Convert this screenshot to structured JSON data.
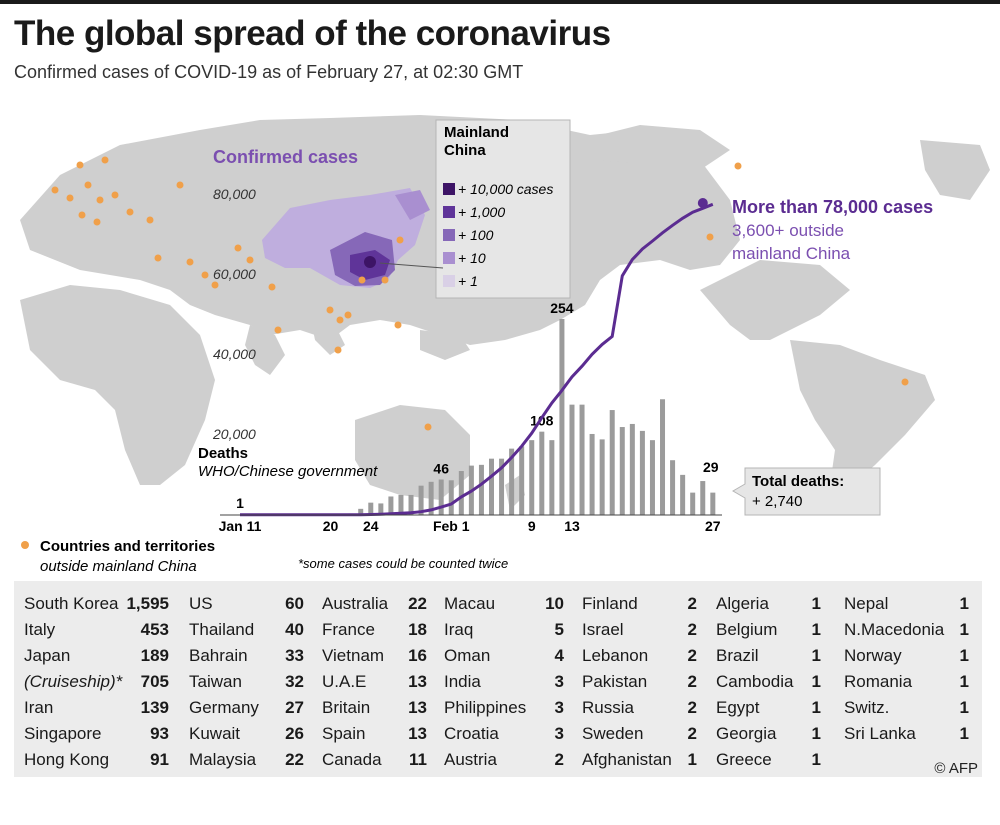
{
  "title": "The global spread of the coronavirus",
  "subtitle": "Confirmed cases of COVID-19 as of February 27, at 02:30 GMT",
  "colors": {
    "map": "#cfcfcf",
    "line": "#5b2c91",
    "bars": "#9b9b9b",
    "dots": "#f0a04a",
    "purple_text": "#7b4fb0",
    "legend_shades": [
      "#3d1466",
      "#5f3499",
      "#8668b8",
      "#a98fd0",
      "#d9d0e6"
    ]
  },
  "confirmed_label": "Confirmed cases",
  "china_legend": {
    "title_line1": "Mainland",
    "title_line2": "China",
    "items": [
      "+ 10,000 cases",
      "+ 1,000",
      "+ 100",
      "+ 10",
      "+ 1"
    ]
  },
  "cases_annotation": {
    "main": "More than 78,000 cases",
    "line2": "3,600+ outside",
    "line3": "mainland China"
  },
  "deaths_label": "Deaths",
  "deaths_source": "WHO/Chinese government",
  "total_deaths_label": "Total deaths:",
  "total_deaths_value": "+ 2,740",
  "dots_legend_line1": "Countries and territories",
  "dots_legend_line2": "outside mainland China",
  "footnote": "*some cases could be counted twice",
  "credit": "© AFP",
  "chart_data": {
    "type": "line",
    "description_x": "date",
    "y_ticks": [
      "80,000",
      "60,000",
      "40,000",
      "20,000"
    ],
    "x_ticks": [
      "Jan 11",
      "20",
      "24",
      "Feb 1",
      "9",
      "13",
      "27"
    ],
    "ylim": [
      0,
      90000
    ],
    "cases_series": {
      "name": "Confirmed cases",
      "x_day": [
        0,
        10,
        11,
        12,
        13,
        14,
        15,
        16,
        17,
        18,
        19,
        20,
        21,
        22,
        23,
        24,
        25,
        26,
        27,
        28,
        29,
        30,
        31,
        32,
        33,
        34,
        35,
        36,
        37,
        38,
        39,
        40,
        41,
        42,
        43,
        44,
        45,
        46,
        47
      ],
      "y": [
        41,
        41,
        45,
        62,
        121,
        198,
        291,
        440,
        571,
        830,
        1287,
        1975,
        2744,
        4515,
        5974,
        7711,
        9692,
        11791,
        14380,
        17205,
        20438,
        24324,
        28018,
        31161,
        34546,
        37198,
        40171,
        42638,
        44653,
        59804,
        63851,
        66492,
        68500,
        70548,
        72436,
        74185,
        75700,
        76677,
        77673
      ]
    },
    "final_cases_point": {
      "x_day": 47,
      "y": 78000
    },
    "deaths_bars": {
      "name": "Deaths",
      "x_day": [
        10,
        11,
        12,
        13,
        14,
        15,
        16,
        17,
        18,
        19,
        20,
        21,
        22,
        23,
        24,
        25,
        26,
        27,
        28,
        29,
        30,
        31,
        32,
        33,
        34,
        35,
        36,
        37,
        38,
        39,
        40,
        41,
        42,
        43,
        44,
        45,
        46,
        47
      ],
      "values": [
        1,
        2,
        8,
        16,
        15,
        24,
        26,
        26,
        38,
        43,
        46,
        45,
        57,
        64,
        65,
        73,
        73,
        86,
        89,
        97,
        108,
        97,
        254,
        143,
        143,
        105,
        98,
        136,
        114,
        118,
        109,
        97,
        150,
        71,
        52,
        29,
        44,
        29
      ],
      "labels": {
        "1": "1",
        "46": "46",
        "108": "108",
        "254": "254",
        "29": "29"
      }
    },
    "annotations": [
      "1",
      "46",
      "108",
      "254",
      "29"
    ]
  },
  "table": [
    [
      [
        "South Korea",
        "1,595"
      ],
      [
        "Italy",
        "453"
      ],
      [
        "Japan",
        "189"
      ],
      [
        "(Cruiseship)*",
        "705"
      ],
      [
        "Iran",
        "139"
      ],
      [
        "Singapore",
        "93"
      ],
      [
        "Hong Kong",
        "91"
      ]
    ],
    [
      [
        "US",
        "60"
      ],
      [
        "Thailand",
        "40"
      ],
      [
        "Bahrain",
        "33"
      ],
      [
        "Taiwan",
        "32"
      ],
      [
        "Germany",
        "27"
      ],
      [
        "Kuwait",
        "26"
      ],
      [
        "Malaysia",
        "22"
      ]
    ],
    [
      [
        "Australia",
        "22"
      ],
      [
        "France",
        "18"
      ],
      [
        "Vietnam",
        "16"
      ],
      [
        "U.A.E",
        "13"
      ],
      [
        "Britain",
        "13"
      ],
      [
        "Spain",
        "13"
      ],
      [
        "Canada",
        "11"
      ]
    ],
    [
      [
        "Macau",
        "10"
      ],
      [
        "Iraq",
        "5"
      ],
      [
        "Oman",
        "4"
      ],
      [
        "India",
        "3"
      ],
      [
        "Philippines",
        "3"
      ],
      [
        "Croatia",
        "3"
      ],
      [
        "Austria",
        "2"
      ]
    ],
    [
      [
        "Finland",
        "2"
      ],
      [
        "Israel",
        "2"
      ],
      [
        "Lebanon",
        "2"
      ],
      [
        "Pakistan",
        "2"
      ],
      [
        "Russia",
        "2"
      ],
      [
        "Sweden",
        "2"
      ],
      [
        "Afghanistan",
        "1"
      ]
    ],
    [
      [
        "Algeria",
        "1"
      ],
      [
        "Belgium",
        "1"
      ],
      [
        "Brazil",
        "1"
      ],
      [
        "Cambodia",
        "1"
      ],
      [
        "Egypt",
        "1"
      ],
      [
        "Georgia",
        "1"
      ],
      [
        "Greece",
        "1"
      ]
    ],
    [
      [
        "Nepal",
        "1"
      ],
      [
        "N.Macedonia",
        "1"
      ],
      [
        "Norway",
        "1"
      ],
      [
        "Romania",
        "1"
      ],
      [
        "Switz.",
        "1"
      ],
      [
        "Sri Lanka",
        "1"
      ]
    ]
  ]
}
